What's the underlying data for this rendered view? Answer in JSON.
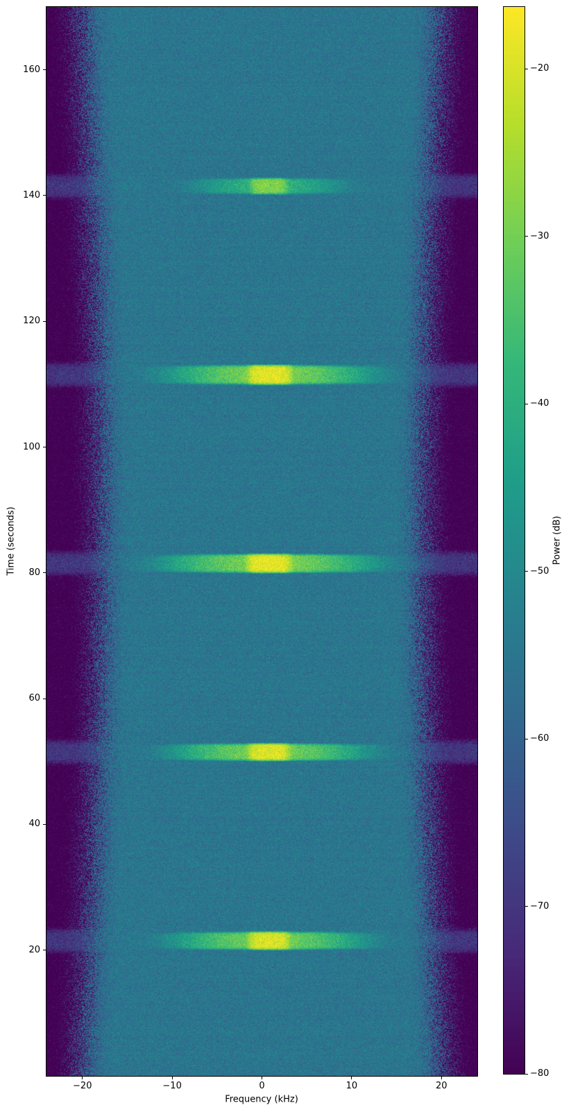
{
  "figure": {
    "background_color": "#ffffff",
    "spine_color": "#000000"
  },
  "chart_data": {
    "type": "heatmap",
    "subtype": "spectrogram-waterfall",
    "title": "",
    "xlabel": "Frequency (kHz)",
    "ylabel": "Time (seconds)",
    "xlim": [
      -24,
      24
    ],
    "ylim": [
      0,
      170
    ],
    "x_ticks": [
      -20,
      -10,
      0,
      10,
      20
    ],
    "y_ticks": [
      20,
      40,
      60,
      80,
      100,
      120,
      140,
      160
    ],
    "grid": false,
    "colorbar": {
      "label": "Power (dB)",
      "ticks": [
        -20,
        -30,
        -40,
        -50,
        -60,
        -70,
        -80
      ],
      "vmin": -80,
      "vmax": -16.3,
      "position": "right"
    },
    "colormap": {
      "name": "viridis",
      "stops": [
        "#440154",
        "#482878",
        "#3e4989",
        "#31688e",
        "#26828e",
        "#1f9e89",
        "#35b779",
        "#6ece58",
        "#b5de2b",
        "#fde725"
      ]
    },
    "background_noise": {
      "level_db": -55,
      "speckle_sigma_db": 3.2,
      "row_streak_sigma_db": 0.8,
      "edge_rolloff_start_khz": 18.2,
      "edge_rolloff_width_khz": 4.2,
      "edge_rolloff_mid_shift_khz": 2.2,
      "edge_floor_db": -82.5,
      "sidelobe_band_db": -70,
      "sidelobe_band_halfwidth_s": 1.6
    },
    "events": [
      {
        "time_s": 21.5,
        "freq_khz": 0.8,
        "peak_db": -20.0,
        "duration_s": 2.4,
        "bandwidth_khz": 4.0
      },
      {
        "time_s": 51.5,
        "freq_khz": 0.8,
        "peak_db": -19.5,
        "duration_s": 2.3,
        "bandwidth_khz": 4.0
      },
      {
        "time_s": 81.5,
        "freq_khz": 0.8,
        "peak_db": -18.5,
        "duration_s": 2.5,
        "bandwidth_khz": 4.3
      },
      {
        "time_s": 111.5,
        "freq_khz": 0.9,
        "peak_db": -19.0,
        "duration_s": 2.6,
        "bandwidth_khz": 4.2
      },
      {
        "time_s": 141.5,
        "freq_khz": 0.8,
        "peak_db": -29.0,
        "duration_s": 2.2,
        "bandwidth_khz": 3.6
      }
    ]
  }
}
